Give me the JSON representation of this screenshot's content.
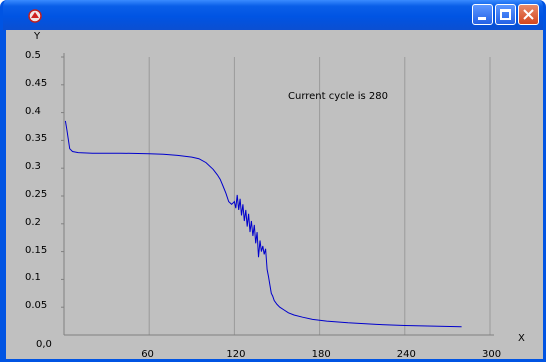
{
  "window": {
    "controls": {
      "minimize_icon": "minimize-icon",
      "maximize_icon": "maximize-icon",
      "close_icon": "close-icon"
    },
    "colors": {
      "titlebar": "#0054e3",
      "client": "#c0c0c0",
      "line": "#0000cc",
      "grid": "#9a9a9a"
    }
  },
  "status_text": "Current cycle is 280",
  "chart_data": {
    "type": "line",
    "xlabel": "X",
    "ylabel": "Y",
    "origin_label": "0,0",
    "xlim": [
      0,
      300
    ],
    "ylim": [
      0,
      0.5
    ],
    "xticks": [
      "60",
      "120",
      "180",
      "240",
      "300"
    ],
    "yticks": [
      "0.05",
      "0.1",
      "0.15",
      "0.2",
      "0.25",
      "0.3",
      "0.35",
      "0.4",
      "0.45",
      "0.5"
    ],
    "grid": true,
    "series": [
      {
        "x": [
          1,
          2,
          4,
          6,
          10,
          20,
          40,
          60,
          70,
          80,
          90,
          95,
          100,
          105,
          108,
          110,
          112,
          114,
          116,
          118,
          120,
          121,
          122,
          123,
          124,
          125,
          126,
          127,
          128,
          129,
          130,
          131,
          132,
          133,
          134,
          135,
          136,
          137,
          138,
          139,
          140,
          141,
          142,
          143,
          144,
          145,
          146,
          147,
          148,
          150,
          152,
          155,
          158,
          162,
          168,
          175,
          185,
          200,
          220,
          240,
          260,
          280
        ],
        "y": [
          0.385,
          0.37,
          0.335,
          0.33,
          0.328,
          0.327,
          0.327,
          0.326,
          0.325,
          0.323,
          0.32,
          0.317,
          0.31,
          0.298,
          0.288,
          0.28,
          0.268,
          0.255,
          0.24,
          0.235,
          0.24,
          0.228,
          0.252,
          0.225,
          0.245,
          0.215,
          0.235,
          0.205,
          0.225,
          0.195,
          0.218,
          0.185,
          0.205,
          0.178,
          0.198,
          0.165,
          0.185,
          0.14,
          0.17,
          0.15,
          0.16,
          0.145,
          0.155,
          0.118,
          0.105,
          0.09,
          0.075,
          0.07,
          0.062,
          0.055,
          0.05,
          0.045,
          0.04,
          0.036,
          0.032,
          0.028,
          0.025,
          0.022,
          0.019,
          0.017,
          0.016,
          0.015
        ]
      }
    ]
  }
}
